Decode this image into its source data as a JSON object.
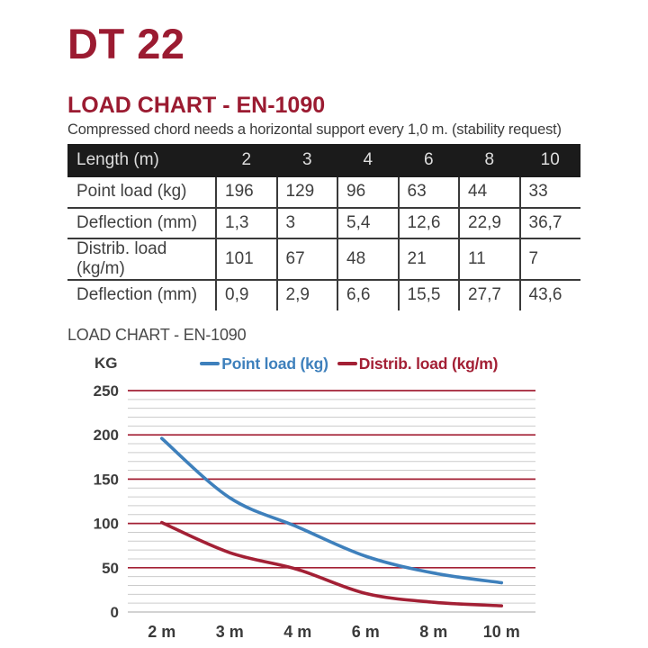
{
  "title": "DT 22",
  "section": {
    "heading": "LOAD CHART - EN-1090",
    "subtitle": "Compressed chord needs a horizontal support every 1,0 m. (stability request)"
  },
  "table": {
    "header": {
      "label": "Length (m)",
      "columns": [
        "2",
        "3",
        "4",
        "6",
        "8",
        "10"
      ]
    },
    "rows": [
      {
        "label": "Point load (kg)",
        "values": [
          "196",
          "129",
          "96",
          "63",
          "44",
          "33"
        ]
      },
      {
        "label": "Deflection (mm)",
        "values": [
          "1,3",
          "3",
          "5,4",
          "12,6",
          "22,9",
          "36,7"
        ]
      },
      {
        "label": "Distrib. load (kg/m)",
        "values": [
          "101",
          "67",
          "48",
          "21",
          "11",
          "7"
        ]
      },
      {
        "label": "Deflection (mm)",
        "values": [
          "0,9",
          "2,9",
          "6,6",
          "15,5",
          "27,7",
          "43,6"
        ]
      }
    ]
  },
  "chart_data": {
    "type": "line",
    "title": "LOAD CHART - EN-1090",
    "ylabel": "KG",
    "xlabel": "",
    "categories": [
      "2 m",
      "3 m",
      "4 m",
      "6 m",
      "8 m",
      "10 m"
    ],
    "series": [
      {
        "name": "Point load (kg)",
        "values": [
          196,
          129,
          96,
          63,
          44,
          33
        ],
        "color": "#3e80bc"
      },
      {
        "name": "Distrib. load (kg/m)",
        "values": [
          101,
          67,
          48,
          21,
          11,
          7
        ],
        "color": "#a32035"
      }
    ],
    "ylim": [
      0,
      250
    ],
    "y_major_ticks": [
      0,
      50,
      100,
      150,
      200,
      250
    ],
    "y_minor_step": 10,
    "grid": {
      "major_color": "#a32035",
      "minor_color": "#cccccc",
      "zero_color": "#b9b9b9",
      "major_on": true,
      "minor_on": true
    },
    "legend_position": "top",
    "line_style": "smooth"
  },
  "colors": {
    "brand_maroon": "#9b1b31",
    "chart_blue": "#3e80bc",
    "chart_red": "#a32035",
    "table_header_bg": "#1b1b1b",
    "table_header_text": "#dedede",
    "body_text": "#3c3c3c",
    "table_border": "#3a3a3a",
    "grid_minor": "#cccccc",
    "background": "#ffffff"
  }
}
